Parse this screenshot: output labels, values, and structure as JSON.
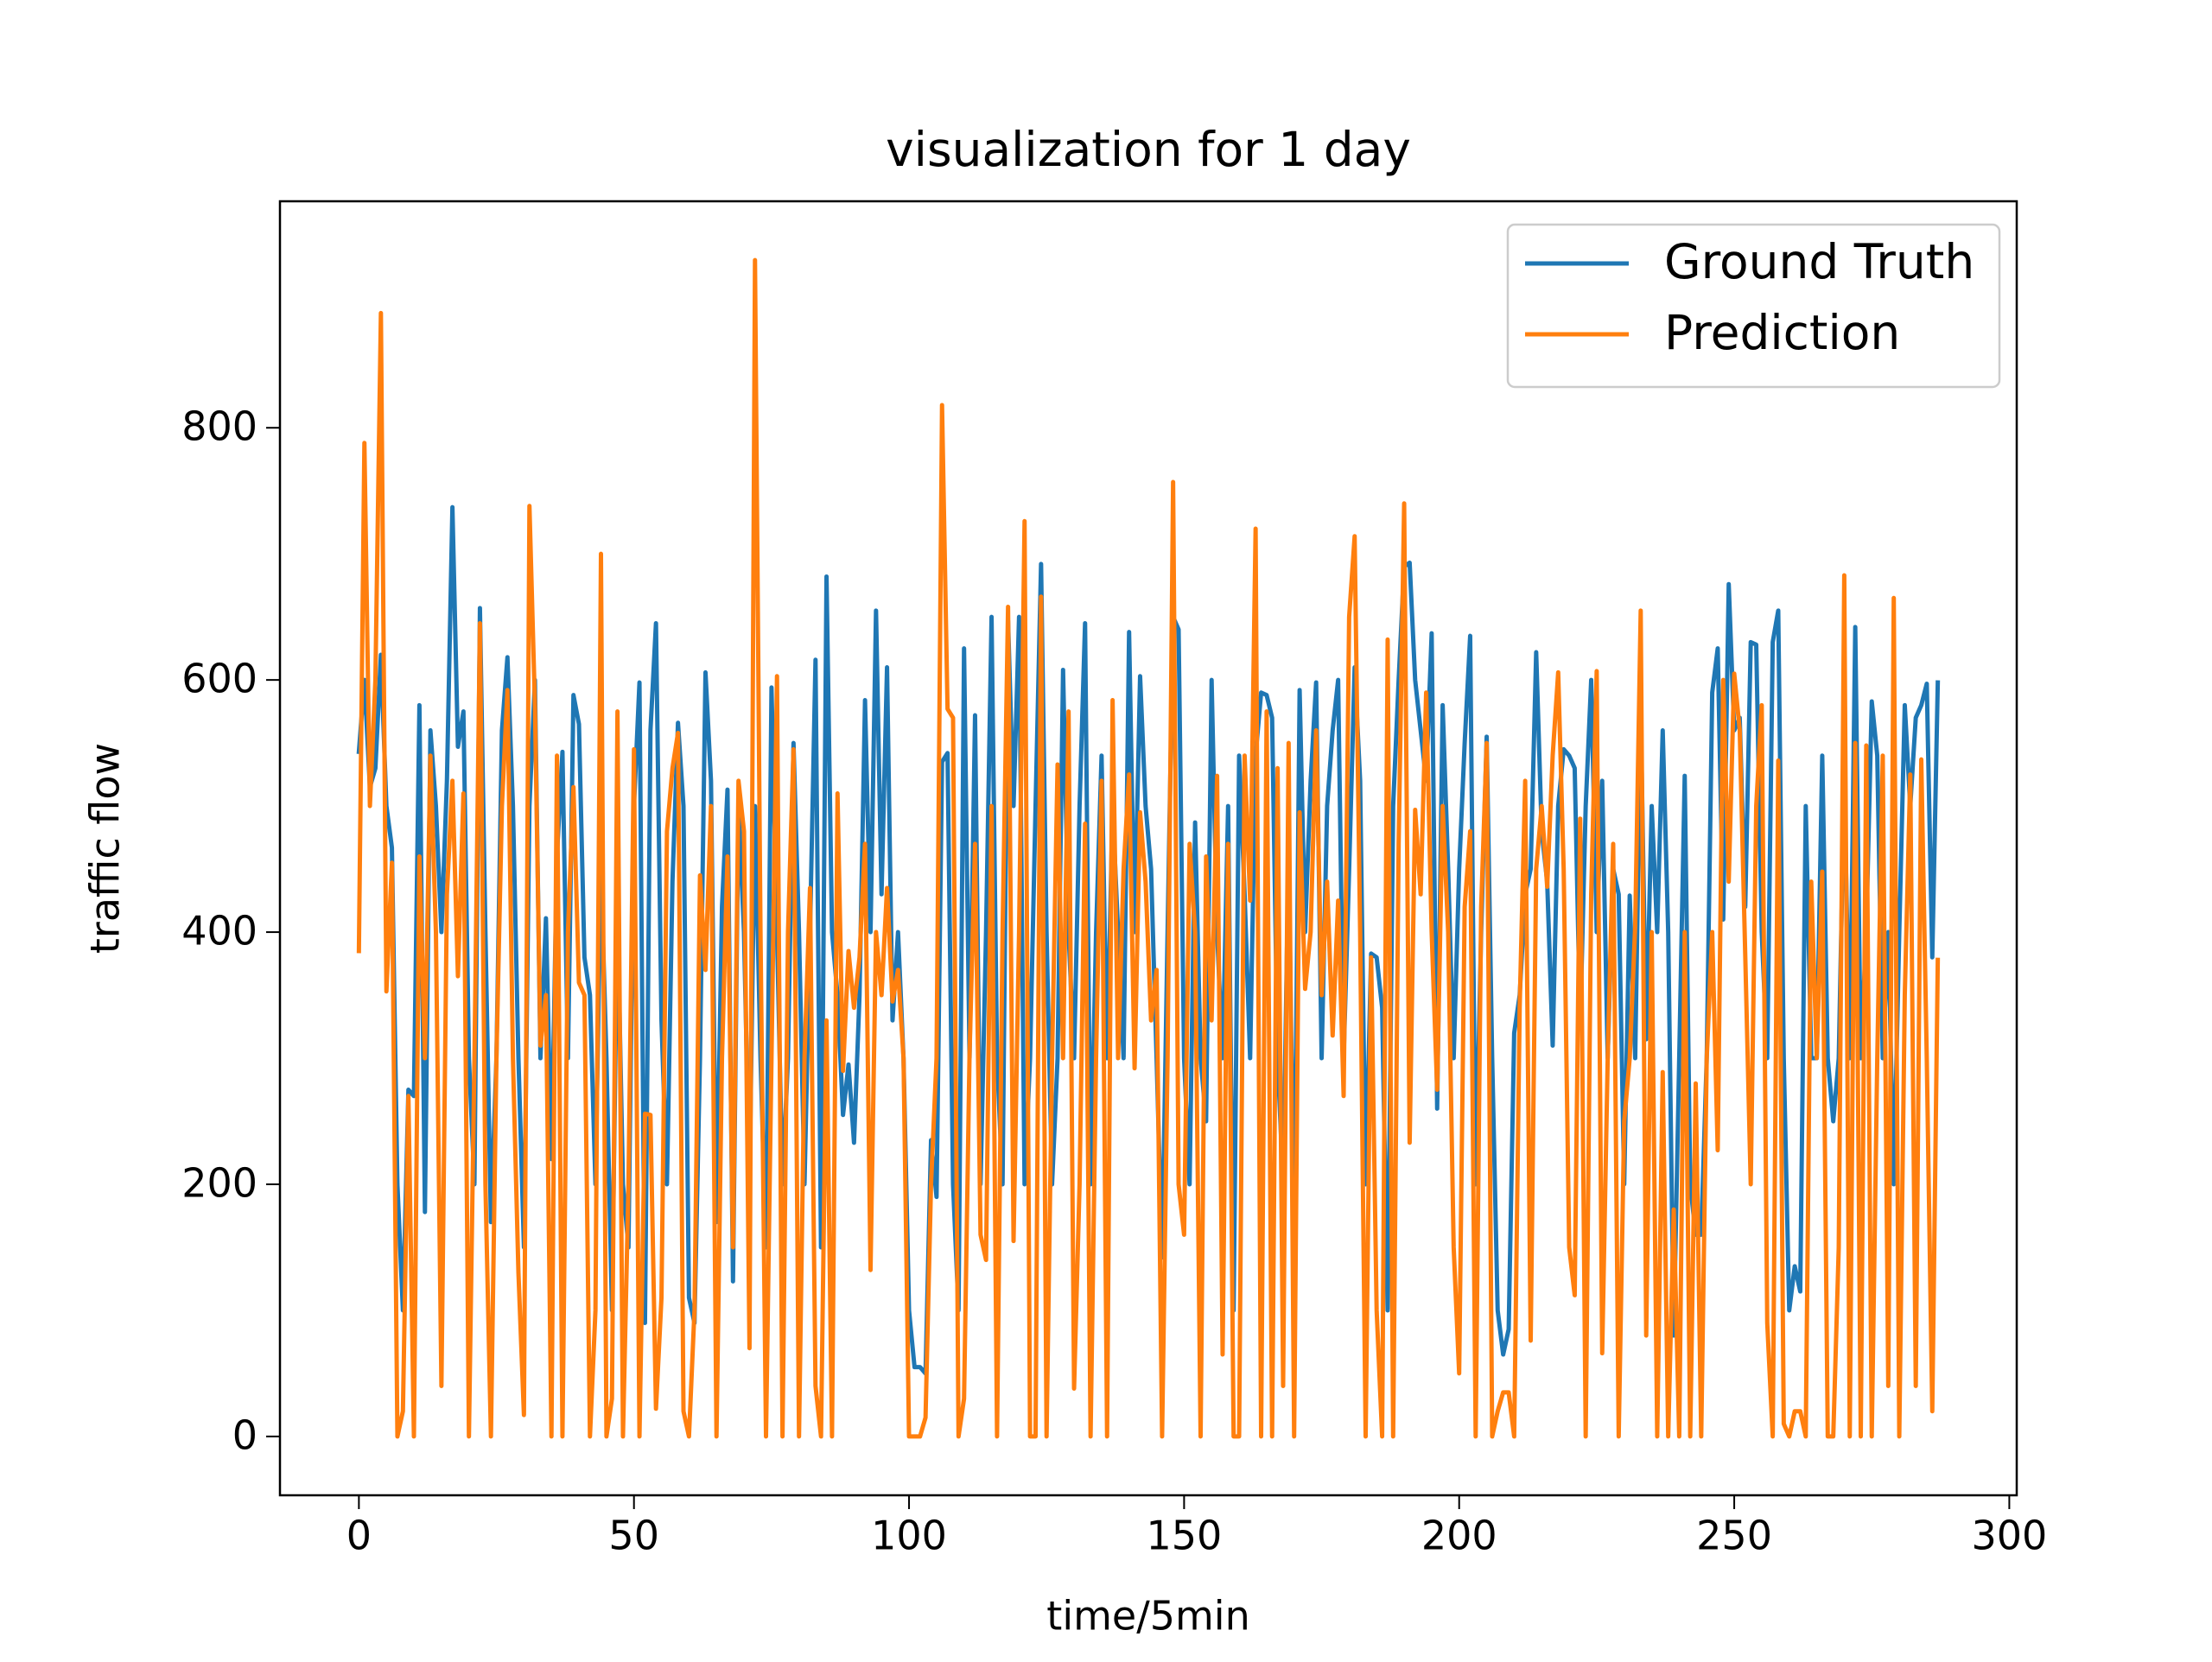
{
  "chart_data": {
    "type": "line",
    "title": "visualization for 1 day",
    "x_label": "time/5min",
    "y_label": "traffic flow",
    "x": [
      0,
      1,
      2,
      3,
      4,
      5,
      6,
      7,
      8,
      9,
      10,
      11,
      12,
      13,
      14,
      15,
      16,
      17,
      18,
      19,
      20,
      21,
      22,
      23,
      24,
      25,
      26,
      27,
      28,
      29,
      30,
      31,
      32,
      33,
      34,
      35,
      36,
      37,
      38,
      39,
      40,
      41,
      42,
      43,
      44,
      45,
      46,
      47,
      48,
      49,
      50,
      51,
      52,
      53,
      54,
      55,
      56,
      57,
      58,
      59,
      60,
      61,
      62,
      63,
      64,
      65,
      66,
      67,
      68,
      69,
      70,
      71,
      72,
      73,
      74,
      75,
      76,
      77,
      78,
      79,
      80,
      81,
      82,
      83,
      84,
      85,
      86,
      87,
      88,
      89,
      90,
      91,
      92,
      93,
      94,
      95,
      96,
      97,
      98,
      99,
      100,
      101,
      102,
      103,
      104,
      105,
      106,
      107,
      108,
      109,
      110,
      111,
      112,
      113,
      114,
      115,
      116,
      117,
      118,
      119,
      120,
      121,
      122,
      123,
      124,
      125,
      126,
      127,
      128,
      129,
      130,
      131,
      132,
      133,
      134,
      135,
      136,
      137,
      138,
      139,
      140,
      141,
      142,
      143,
      144,
      145,
      146,
      147,
      148,
      149,
      150,
      151,
      152,
      153,
      154,
      155,
      156,
      157,
      158,
      159,
      160,
      161,
      162,
      163,
      164,
      165,
      166,
      167,
      168,
      169,
      170,
      171,
      172,
      173,
      174,
      175,
      176,
      177,
      178,
      179,
      180,
      181,
      182,
      183,
      184,
      185,
      186,
      187,
      188,
      189,
      190,
      191,
      192,
      193,
      194,
      195,
      196,
      197,
      198,
      199,
      200,
      201,
      202,
      203,
      204,
      205,
      206,
      207,
      208,
      209,
      210,
      211,
      212,
      213,
      214,
      215,
      216,
      217,
      218,
      219,
      220,
      221,
      222,
      223,
      224,
      225,
      226,
      227,
      228,
      229,
      230,
      231,
      232,
      233,
      234,
      235,
      236,
      237,
      238,
      239,
      240,
      241,
      242,
      243,
      244,
      245,
      246,
      247,
      248,
      249,
      250,
      251,
      252,
      253,
      254,
      255,
      256,
      257,
      258,
      259,
      260,
      261,
      262,
      263,
      264,
      265,
      266,
      267,
      268,
      269,
      270,
      271,
      272,
      273,
      274,
      275,
      276,
      277,
      278,
      279,
      280,
      281,
      282,
      283,
      284,
      285,
      286,
      287
    ],
    "series": [
      {
        "name": "Ground Truth",
        "color": "#1f77b4",
        "values": [
          543,
          600,
          515,
          530,
          620,
          500,
          467,
          200,
          100,
          275,
          270,
          580,
          178,
          560,
          500,
          400,
          520,
          737,
          547,
          575,
          300,
          200,
          657,
          400,
          170,
          300,
          560,
          618,
          500,
          300,
          150,
          500,
          600,
          300,
          411,
          220,
          460,
          543,
          300,
          588,
          565,
          380,
          350,
          200,
          450,
          300,
          100,
          420,
          200,
          150,
          500,
          598,
          90,
          560,
          645,
          330,
          200,
          440,
          566,
          500,
          110,
          90,
          300,
          606,
          520,
          170,
          420,
          513,
          123,
          500,
          400,
          200,
          500,
          300,
          150,
          594,
          400,
          200,
          300,
          550,
          400,
          200,
          400,
          616,
          150,
          682,
          400,
          350,
          255,
          295,
          233,
          350,
          584,
          400,
          655,
          430,
          610,
          330,
          400,
          300,
          100,
          55,
          55,
          50,
          235,
          190,
          535,
          542,
          200,
          100,
          625,
          300,
          572,
          200,
          400,
          650,
          300,
          200,
          647,
          500,
          650,
          200,
          300,
          500,
          692,
          400,
          200,
          300,
          608,
          400,
          300,
          500,
          645,
          200,
          400,
          540,
          300,
          500,
          400,
          300,
          638,
          400,
          603,
          500,
          450,
          300,
          142,
          400,
          650,
          640,
          300,
          200,
          487,
          300,
          250,
          600,
          400,
          300,
          500,
          100,
          540,
          430,
          300,
          540,
          590,
          588,
          570,
          300,
          200,
          467,
          150,
          592,
          400,
          520,
          598,
          300,
          500,
          560,
          600,
          300,
          450,
          610,
          520,
          200,
          383,
          380,
          340,
          100,
          500,
          600,
          690,
          693,
          600,
          560,
          520,
          637,
          260,
          580,
          450,
          300,
          450,
          550,
          635,
          200,
          400,
          555,
          300,
          100,
          65,
          85,
          320,
          350,
          430,
          450,
          622,
          480,
          440,
          310,
          500,
          545,
          540,
          530,
          326,
          500,
          600,
          400,
          520,
          300,
          450,
          430,
          200,
          429,
          300,
          577,
          315,
          500,
          400,
          560,
          400,
          80,
          300,
          524,
          200,
          160,
          160,
          300,
          590,
          625,
          410,
          676,
          560,
          570,
          420,
          630,
          628,
          400,
          300,
          630,
          655,
          300,
          100,
          135,
          115,
          500,
          300,
          300,
          540,
          300,
          250,
          300,
          520,
          300,
          642,
          300,
          400,
          583,
          540,
          300,
          400,
          200,
          400,
          580,
          500,
          570,
          580,
          597,
          380,
          598
        ]
      },
      {
        "name": "Prediction",
        "color": "#ff7f0e",
        "values": [
          385,
          788,
          500,
          600,
          891,
          353,
          455,
          0,
          20,
          270,
          0,
          460,
          300,
          540,
          400,
          40,
          430,
          520,
          365,
          510,
          0,
          300,
          645,
          200,
          0,
          300,
          500,
          592,
          300,
          130,
          17,
          738,
          580,
          310,
          350,
          0,
          540,
          0,
          400,
          515,
          360,
          350,
          0,
          100,
          700,
          0,
          30,
          575,
          0,
          200,
          545,
          0,
          256,
          255,
          22,
          110,
          480,
          530,
          558,
          20,
          0,
          100,
          445,
          370,
          500,
          0,
          300,
          460,
          150,
          520,
          480,
          70,
          933,
          400,
          0,
          300,
          603,
          0,
          400,
          545,
          0,
          300,
          435,
          40,
          0,
          330,
          0,
          510,
          290,
          385,
          340,
          380,
          470,
          132,
          400,
          350,
          435,
          345,
          370,
          300,
          0,
          0,
          0,
          15,
          200,
          300,
          818,
          577,
          570,
          0,
          30,
          303,
          470,
          160,
          140,
          500,
          0,
          400,
          658,
          155,
          400,
          726,
          0,
          0,
          666,
          0,
          300,
          533,
          300,
          575,
          38,
          200,
          486,
          0,
          300,
          520,
          0,
          584,
          300,
          450,
          525,
          292,
          495,
          440,
          330,
          370,
          0,
          300,
          757,
          200,
          160,
          470,
          400,
          0,
          460,
          330,
          524,
          65,
          470,
          0,
          0,
          540,
          425,
          720,
          0,
          575,
          0,
          530,
          40,
          550,
          0,
          495,
          355,
          400,
          560,
          350,
          440,
          318,
          425,
          270,
          650,
          714,
          400,
          0,
          380,
          100,
          0,
          632,
          0,
          470,
          740,
          233,
          497,
          430,
          590,
          400,
          275,
          500,
          400,
          150,
          50,
          420,
          480,
          0,
          420,
          550,
          0,
          20,
          35,
          35,
          0,
          340,
          520,
          76,
          450,
          500,
          436,
          540,
          606,
          450,
          150,
          112,
          490,
          0,
          430,
          607,
          66,
          300,
          470,
          0,
          250,
          300,
          405,
          655,
          80,
          400,
          0,
          289,
          0,
          180,
          0,
          400,
          0,
          280,
          0,
          300,
          400,
          227,
          600,
          440,
          605,
          560,
          382,
          200,
          500,
          580,
          90,
          0,
          536,
          10,
          0,
          20,
          20,
          0,
          440,
          300,
          448,
          0,
          0,
          150,
          683,
          0,
          550,
          0,
          548,
          0,
          300,
          540,
          40,
          665,
          0,
          350,
          525,
          40,
          537,
          300,
          20,
          378
        ]
      }
    ],
    "xlim": [
      -14.35,
      301.35
    ],
    "ylim": [
      -46.65,
      979.65
    ],
    "xticks": [
      0,
      50,
      100,
      150,
      200,
      250,
      300
    ],
    "yticks": [
      0,
      200,
      400,
      600,
      800
    ],
    "grid": false,
    "legend": "upper right"
  }
}
